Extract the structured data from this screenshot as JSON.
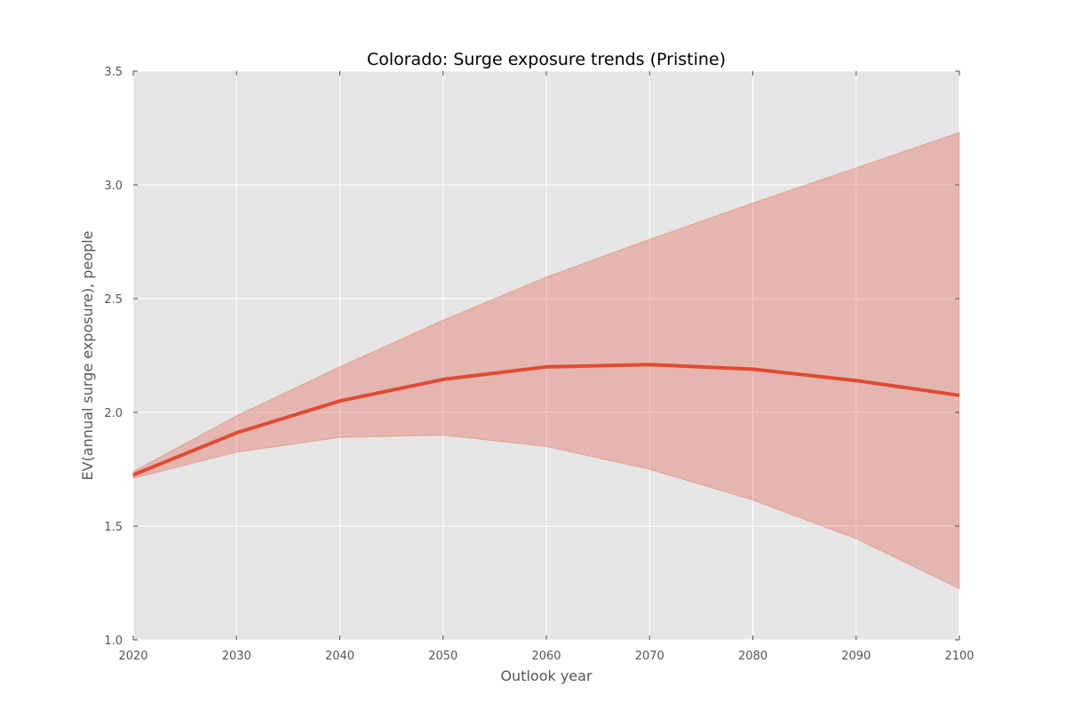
{
  "chart_data": {
    "type": "line",
    "title": "Colorado: Surge exposure trends (Pristine)",
    "xlabel": "Outlook year",
    "ylabel": "EV(annual surge exposure), people",
    "xlim": [
      2020,
      2100
    ],
    "ylim": [
      1.0,
      3.5
    ],
    "xticks": [
      "2020",
      "2030",
      "2040",
      "2050",
      "2060",
      "2070",
      "2080",
      "2090",
      "2100"
    ],
    "yticks": [
      "1.0",
      "1.5",
      "2.0",
      "2.5",
      "3.0",
      "3.5"
    ],
    "grid": true,
    "x": [
      2020,
      2030,
      2040,
      2050,
      2060,
      2070,
      2080,
      2090,
      2100
    ],
    "series": [
      {
        "values": [
          1.725,
          1.91,
          2.05,
          2.145,
          2.2,
          2.21,
          2.19,
          2.14,
          2.075
        ],
        "lower": [
          1.71,
          1.825,
          1.89,
          1.9,
          1.85,
          1.75,
          1.615,
          1.445,
          1.225
        ],
        "upper": [
          1.74,
          1.985,
          2.2,
          2.405,
          2.595,
          2.76,
          2.92,
          3.075,
          3.23
        ],
        "color": "#e24a33"
      }
    ],
    "colors": {
      "plot_background": "#e5e5e5",
      "grid": "#ffffff",
      "band": "#e24a33",
      "line": "#e24a33"
    }
  }
}
